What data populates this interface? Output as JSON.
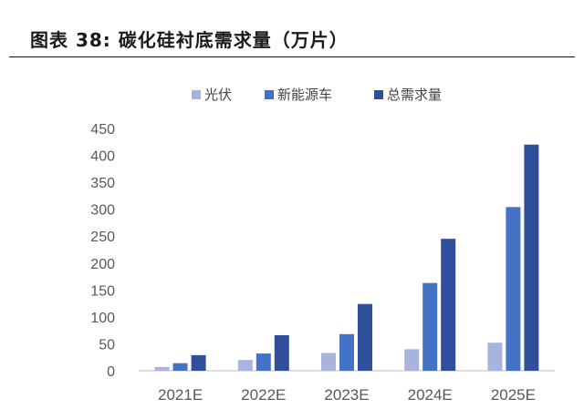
{
  "header": {
    "title": "图表 38: 碳化硅衬底需求量（万片）"
  },
  "chart_data": {
    "type": "bar",
    "categories": [
      "2021E",
      "2022E",
      "2023E",
      "2024E",
      "2025E"
    ],
    "series": [
      {
        "name": "光伏",
        "color": "#a9b4de",
        "values": [
          7,
          20,
          33,
          40,
          52
        ]
      },
      {
        "name": "新能源车",
        "color": "#4472c4",
        "values": [
          14,
          32,
          68,
          163,
          304
        ]
      },
      {
        "name": "总需求量",
        "color": "#2f4f9a",
        "values": [
          29,
          66,
          124,
          245,
          420
        ]
      }
    ],
    "ylim": [
      0,
      450
    ],
    "yticks": [
      0,
      50,
      100,
      150,
      200,
      250,
      300,
      350,
      400,
      450
    ],
    "grid": false,
    "legend": "top-center"
  }
}
